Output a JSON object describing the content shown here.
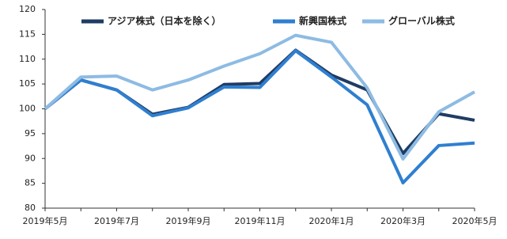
{
  "chart_data": {
    "type": "line",
    "categories": [
      "2019年5月",
      null,
      "2019年7月",
      null,
      "2019年9月",
      null,
      "2019年11月",
      null,
      "2020年1月",
      null,
      "2020年3月",
      null,
      "2020年5月"
    ],
    "series": [
      {
        "name": "アジア株式（日本を除く）",
        "color": "#1f3c64",
        "values": [
          100,
          105.8,
          103.8,
          98.9,
          100.3,
          104.9,
          105.1,
          111.8,
          106.8,
          103.8,
          91.0,
          99.0,
          97.7
        ]
      },
      {
        "name": "新興国株式",
        "color": "#2f7fd0",
        "values": [
          100,
          105.8,
          103.8,
          98.6,
          100.2,
          104.4,
          104.3,
          111.7,
          106.4,
          100.8,
          85.1,
          92.6,
          93.1
        ]
      },
      {
        "name": "グローバル株式",
        "color": "#8dbbe3",
        "values": [
          100,
          106.4,
          106.6,
          103.8,
          105.8,
          108.6,
          111.1,
          114.8,
          113.4,
          104.2,
          89.9,
          99.4,
          103.4
        ]
      }
    ],
    "ylim": [
      80,
      120
    ],
    "yticks": [
      80,
      85,
      90,
      95,
      100,
      105,
      110,
      115,
      120
    ],
    "grid": false
  }
}
